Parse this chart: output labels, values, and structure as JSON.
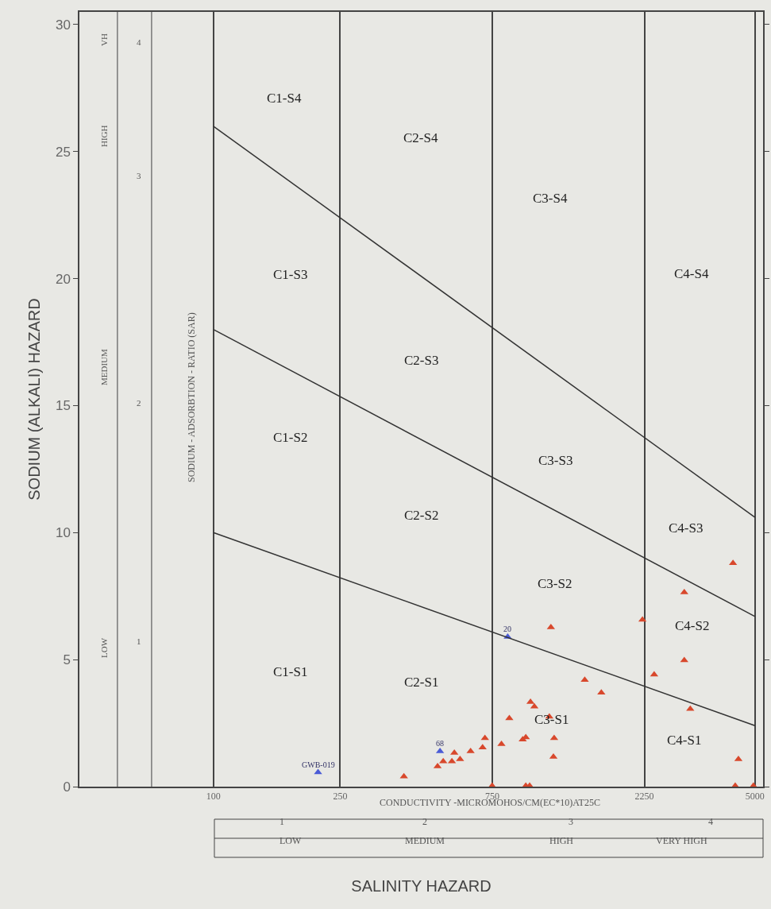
{
  "chart_data": {
    "type": "scatter",
    "xlabel": "SALINITY HAZARD",
    "ylabel": "SODIUM (ALKALI) HAZARD",
    "log": "x",
    "xlim": [
      38,
      5300
    ],
    "xticks": [
      100,
      250,
      750,
      2250,
      5000
    ],
    "ylim": [
      0,
      30.5
    ],
    "yticks": [
      0,
      5,
      10,
      15,
      20,
      25,
      30
    ],
    "grid": "x",
    "ref_lines": [
      {
        "axis": "x",
        "value": 50,
        "color": "#777777"
      },
      {
        "axis": "x",
        "value": 64,
        "color": "#777777"
      }
    ],
    "marker": "triangle",
    "series": [
      {
        "color": "#d8482c",
        "x": [
          1145,
          2218,
          3000,
          2414,
          1462,
          1648,
          3133,
          988,
          1016,
          1132,
          848,
          955,
          934,
          1172,
          1166,
          801,
          711,
          699,
          641,
          570,
          594,
          560,
          526,
          505,
          396,
          749,
          955,
          982,
          4436,
          4335,
          4943,
          3000,
          4266
        ],
        "values": [
          6.27,
          6.57,
          4.97,
          4.41,
          4.2,
          3.7,
          3.06,
          3.33,
          3.15,
          2.75,
          2.69,
          1.94,
          1.85,
          1.91,
          1.17,
          1.67,
          1.91,
          1.54,
          1.39,
          1.33,
          1.08,
          0.99,
          0.99,
          0.8,
          0.4,
          0.03,
          0.03,
          0.03,
          1.08,
          0.03,
          0.03,
          7.65,
          8.8
        ]
      },
      {
        "color": "#4a5bd6",
        "x": [
          838,
          514,
          213
        ],
        "values": [
          5.9,
          1.39,
          0.56
        ]
      },
      {
        "type": "line",
        "marker": "none",
        "color": "#333333",
        "x": [
          100,
          5000
        ],
        "values": [
          10,
          2.4
        ]
      },
      {
        "type": "line",
        "marker": "none",
        "color": "#333333",
        "x": [
          100,
          5000
        ],
        "values": [
          18,
          6.7
        ]
      },
      {
        "type": "line",
        "marker": "none",
        "color": "#333333",
        "x": [
          100,
          5000
        ],
        "values": [
          26,
          10.6
        ]
      }
    ],
    "annotations": [
      "C1-S4",
      "C2-S4",
      "C3-S4",
      "C4-S4",
      "C1-S3",
      "C2-S3",
      "C3-S3",
      "C4-S3",
      "C1-S2",
      "C2-S2",
      "C3-S2",
      "C4-S2",
      "C1-S1",
      "C2-S1",
      "C3-S1",
      "C4-S1",
      "SODIUM - ADSORBTION - RATIO (SAR)",
      "CONDUCTIVITY -MICROMOHOS/CM(EC*10)AT25C",
      "LOW",
      "MEDIUM",
      "HIGH",
      "VH",
      "1",
      "2",
      "3",
      "4",
      "1",
      "2",
      "3",
      "4",
      "LOW",
      "MEDIUM",
      "HIGH",
      "VERY HIGH",
      {
        "text": "20",
        "x": 838,
        "y": 5.9
      },
      {
        "text": "68",
        "x": 514,
        "y": 1.39
      },
      {
        "text": "GWB-019",
        "x": 213,
        "y": 0.56
      }
    ]
  }
}
